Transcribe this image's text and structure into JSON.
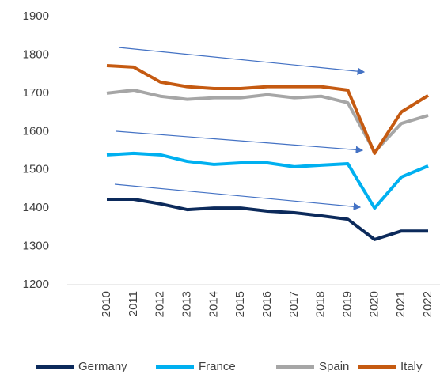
{
  "chart_data": {
    "type": "line",
    "categories": [
      "2010",
      "2011",
      "2012",
      "2013",
      "2014",
      "2015",
      "2016",
      "2017",
      "2018",
      "2019",
      "2020",
      "2021",
      "2022"
    ],
    "series": [
      {
        "name": "Germany",
        "color": "#0c2a5b",
        "values": [
          1423,
          1423,
          1411,
          1396,
          1400,
          1400,
          1392,
          1388,
          1380,
          1371,
          1318,
          1340,
          1340
        ]
      },
      {
        "name": "France",
        "color": "#00b0f0",
        "values": [
          1539,
          1543,
          1539,
          1522,
          1514,
          1518,
          1518,
          1508,
          1512,
          1516,
          1400,
          1481,
          1510
        ]
      },
      {
        "name": "Spain",
        "color": "#a6a6a6",
        "values": [
          1700,
          1708,
          1692,
          1684,
          1688,
          1688,
          1696,
          1688,
          1692,
          1675,
          1547,
          1621,
          1642
        ]
      },
      {
        "name": "Italy",
        "color": "#c55a11",
        "values": [
          1772,
          1768,
          1729,
          1717,
          1712,
          1712,
          1717,
          1717,
          1717,
          1708,
          1543,
          1651,
          1694
        ]
      }
    ],
    "ylim": [
      1200,
      1900
    ],
    "yticks": [
      1200,
      1300,
      1400,
      1500,
      1600,
      1700,
      1800,
      1900
    ],
    "grid": false,
    "legend": "bottom"
  }
}
